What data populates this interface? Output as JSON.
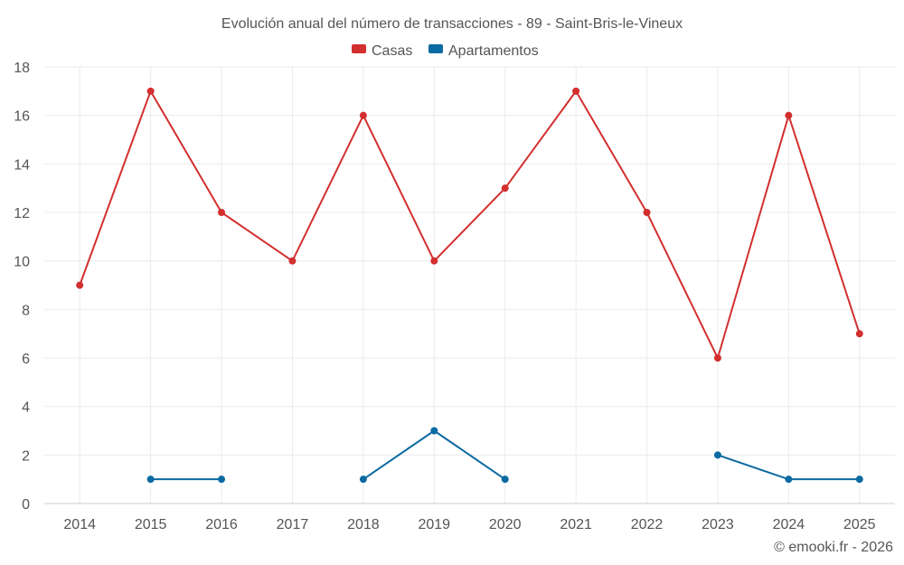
{
  "chart_data": {
    "type": "line",
    "title": "Evolución anual del número de transacciones - 89 - Saint-Bris-le-Vineux",
    "categories": [
      "2014",
      "2015",
      "2016",
      "2017",
      "2018",
      "2019",
      "2020",
      "2021",
      "2022",
      "2023",
      "2024",
      "2025"
    ],
    "ylim": [
      0,
      18
    ],
    "yticks": [
      "0",
      "2",
      "4",
      "6",
      "8",
      "10",
      "12",
      "14",
      "16",
      "18"
    ],
    "grid": true,
    "legend_position": "top-center",
    "series": [
      {
        "name": "Casas",
        "color": "#d32f2f",
        "values": [
          9,
          17,
          12,
          10,
          16,
          10,
          13,
          17,
          12,
          6,
          16,
          7
        ]
      },
      {
        "name": "Apartamentos",
        "color": "#0a6aa1",
        "values": [
          null,
          1,
          1,
          null,
          1,
          3,
          1,
          null,
          null,
          2,
          1,
          1
        ]
      }
    ],
    "credit": "© emooki.fr - 2026"
  }
}
